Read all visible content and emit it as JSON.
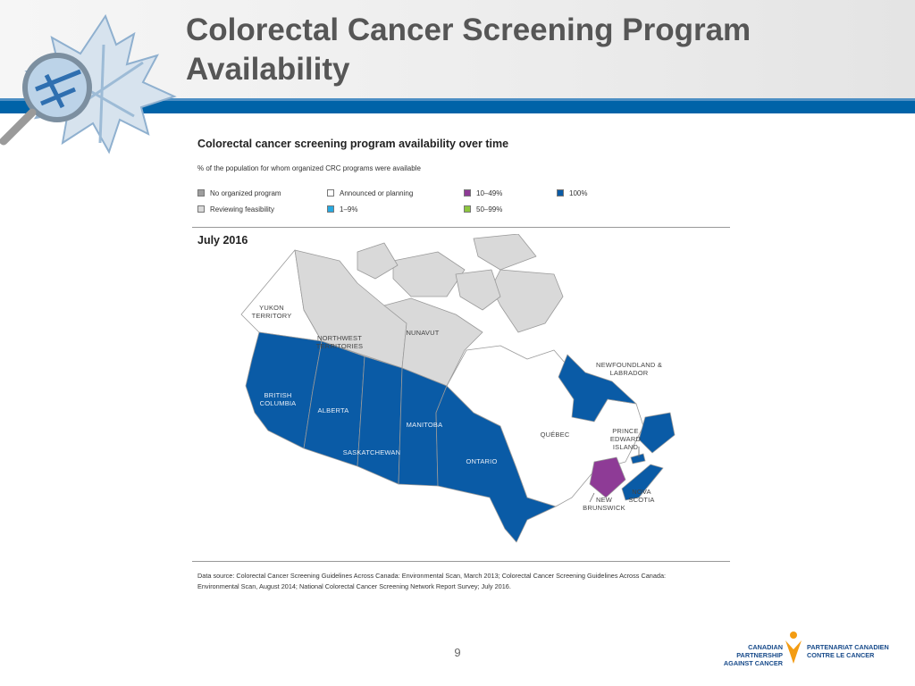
{
  "slide": {
    "title_line1": "Colorectal Cancer Screening Program",
    "title_line2": "Availability",
    "page_number": "9"
  },
  "figure": {
    "title": "Colorectal cancer screening program availability over time",
    "subtitle": "% of the population for whom organized CRC programs were available",
    "date_label": "July 2016",
    "legend": [
      {
        "label": "No organized program",
        "color": "#9e9e9e"
      },
      {
        "label": "Reviewing feasibility",
        "color": "#d9d9d9"
      },
      {
        "label": "Announced or planning",
        "color": "#ffffff"
      },
      {
        "label": "1–9%",
        "color": "#27a9e1"
      },
      {
        "label": "10–49%",
        "color": "#8e3b96"
      },
      {
        "label": "50–99%",
        "color": "#8dc63f"
      },
      {
        "label": "100%",
        "color": "#0a5ba6"
      }
    ],
    "source_line1": "Data source: Colorectal Cancer Screening Guidelines Across Canada: Environmental Scan, March 2013; Colorectal Cancer Screening Guidelines Across Canada:",
    "source_line2": "Environmental Scan, August 2014; National Colorectal Cancer Screening Network Report Survey; July 2016."
  },
  "map": {
    "colors": {
      "full": "#0a5ba6",
      "partial": "#8e3b96",
      "none": "#d9d9d9",
      "announced": "#ffffff",
      "border": "#9a9a9a"
    },
    "provinces": [
      {
        "id": "yukon",
        "line1": "YUKON",
        "line2": "TERRITORY",
        "status": "Announced or planning"
      },
      {
        "id": "nwt",
        "line1": "NORTHWEST",
        "line2": "TERRITORIES",
        "status": "Reviewing feasibility"
      },
      {
        "id": "nunavut",
        "line1": "NUNAVUT",
        "line2": "",
        "status": "Reviewing feasibility"
      },
      {
        "id": "bc",
        "line1": "BRITISH",
        "line2": "COLUMBIA",
        "status": "100%"
      },
      {
        "id": "alberta",
        "line1": "ALBERTA",
        "line2": "",
        "status": "100%"
      },
      {
        "id": "saskatchewan",
        "line1": "SASKATCHEWAN",
        "line2": "",
        "status": "100%"
      },
      {
        "id": "manitoba",
        "line1": "MANITOBA",
        "line2": "",
        "status": "100%"
      },
      {
        "id": "ontario",
        "line1": "ONTARIO",
        "line2": "",
        "status": "100%"
      },
      {
        "id": "quebec",
        "line1": "QUÉBEC",
        "line2": "",
        "status": "Announced or planning"
      },
      {
        "id": "nl",
        "line1": "NEWFOUNDLAND &",
        "line2": "LABRADOR",
        "status": "100%"
      },
      {
        "id": "pei",
        "line1": "PRINCE",
        "line2": "EDWARD",
        "line3": "ISLAND",
        "status": "100%"
      },
      {
        "id": "nb",
        "line1": "NEW",
        "line2": "BRUNSWICK",
        "status": "10–49%"
      },
      {
        "id": "ns",
        "line1": "NOVA",
        "line2": "SCOTIA",
        "status": "100%"
      }
    ]
  },
  "partner": {
    "en_line1": "CANADIAN PARTNERSHIP",
    "en_line2": "AGAINST CANCER",
    "fr_line1": "PARTENARIAT CANADIEN",
    "fr_line2": "CONTRE LE CANCER"
  }
}
